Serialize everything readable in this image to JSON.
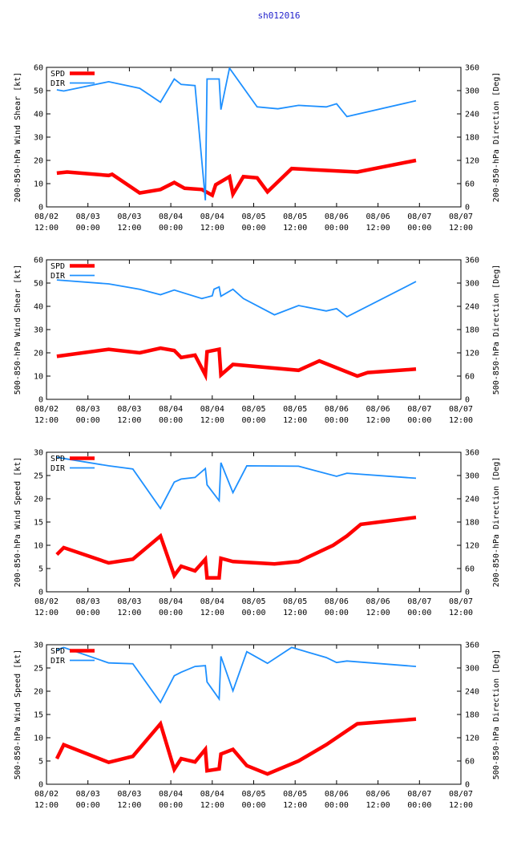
{
  "title": "sh012016",
  "colors": {
    "spd": "#ff0000",
    "dir": "#1e90ff",
    "axis": "#000000",
    "grid": "#a0a0a0",
    "title": "#2222cc"
  },
  "x_ticks": [
    {
      "date": "08/02",
      "time": "12:00"
    },
    {
      "date": "08/03",
      "time": "00:00"
    },
    {
      "date": "08/03",
      "time": "12:00"
    },
    {
      "date": "08/04",
      "time": "00:00"
    },
    {
      "date": "08/04",
      "time": "12:00"
    },
    {
      "date": "08/05",
      "time": "00:00"
    },
    {
      "date": "08/05",
      "time": "12:00"
    },
    {
      "date": "08/06",
      "time": "00:00"
    },
    {
      "date": "08/06",
      "time": "12:00"
    },
    {
      "date": "08/07",
      "time": "00:00"
    },
    {
      "date": "08/07",
      "time": "12:00"
    }
  ],
  "chart_data": [
    {
      "type": "line",
      "ylabel": "200-850-hPa Wind Shear [kt]",
      "y2label": "200-850-hPa Direction [Deg]",
      "ylim": [
        0,
        60
      ],
      "y_ticks": [
        0,
        10,
        20,
        30,
        40,
        50,
        60
      ],
      "y2lim": [
        0,
        360
      ],
      "y2_ticks": [
        0,
        60,
        120,
        180,
        240,
        300,
        360
      ],
      "xlim": [
        0,
        120
      ],
      "legend": [
        {
          "label": "SPD",
          "series": "spd"
        },
        {
          "label": "DIR",
          "series": "dir"
        }
      ],
      "series": [
        {
          "name": "SPD",
          "key": "spd",
          "x": [
            3,
            6,
            18,
            19,
            27,
            33,
            37,
            40,
            45,
            48,
            49,
            53,
            54,
            57,
            61,
            64,
            71,
            77,
            90,
            107
          ],
          "y": [
            14.5,
            15,
            13.5,
            14,
            6,
            7.5,
            10.5,
            8,
            7.5,
            5,
            9.5,
            13,
            5.5,
            13,
            12.5,
            6.5,
            16.5,
            16,
            15,
            20
          ]
        },
        {
          "name": "DIR",
          "key": "dir",
          "x": [
            3,
            5,
            18,
            27,
            33,
            37,
            39,
            43,
            46,
            46.5,
            50,
            50.5,
            53,
            61,
            67,
            73,
            81,
            84,
            87,
            107
          ],
          "y": [
            302,
            299,
            323,
            306,
            270,
            330,
            316,
            313,
            17,
            330,
            330,
            251,
            358,
            258,
            253,
            262,
            258,
            266,
            233,
            274
          ]
        }
      ]
    },
    {
      "type": "line",
      "ylabel": "500-850-hPa Wind Shear [kt]",
      "y2label": "500-850-hPa Direction [Deg]",
      "ylim": [
        0,
        60
      ],
      "y_ticks": [
        0,
        10,
        20,
        30,
        40,
        50,
        60
      ],
      "y2lim": [
        0,
        360
      ],
      "y2_ticks": [
        0,
        60,
        120,
        180,
        240,
        300,
        360
      ],
      "xlim": [
        0,
        120
      ],
      "legend": [
        {
          "label": "SPD",
          "series": "spd"
        },
        {
          "label": "DIR",
          "series": "dir"
        }
      ],
      "series": [
        {
          "name": "SPD",
          "key": "spd",
          "x": [
            3,
            18,
            27,
            33,
            37,
            39,
            43,
            46,
            46.5,
            50,
            50.5,
            54,
            73,
            79,
            90,
            93,
            107
          ],
          "y": [
            18.5,
            21.5,
            20,
            22,
            21,
            18,
            19,
            10.5,
            20.5,
            21.5,
            10.5,
            15,
            12.5,
            16.5,
            10,
            11.5,
            13
          ]
        },
        {
          "name": "DIR",
          "key": "dir",
          "x": [
            3,
            18,
            27,
            33,
            37,
            45,
            48,
            48.5,
            50,
            50.5,
            54,
            57,
            66,
            73,
            81,
            84,
            87,
            107
          ],
          "y": [
            308,
            298,
            284,
            270,
            282,
            260,
            267,
            284,
            290,
            266,
            284,
            260,
            218,
            242,
            228,
            234,
            213,
            304
          ]
        }
      ]
    },
    {
      "type": "line",
      "ylabel": "200-850-hPa Wind Speed [kt]",
      "y2label": "200-850-hPa Direction [Deg]",
      "ylim": [
        0,
        30
      ],
      "y_ticks": [
        0,
        5,
        10,
        15,
        20,
        25,
        30
      ],
      "y2lim": [
        0,
        360
      ],
      "y2_ticks": [
        0,
        60,
        120,
        180,
        240,
        300,
        360
      ],
      "xlim": [
        0,
        120
      ],
      "legend": [
        {
          "label": "SPD",
          "series": "spd"
        },
        {
          "label": "DIR",
          "series": "dir"
        }
      ],
      "series": [
        {
          "name": "SPD",
          "key": "spd",
          "x": [
            3,
            5,
            18,
            25,
            33,
            37,
            39,
            43,
            46,
            46.5,
            50,
            50.5,
            54,
            66,
            73,
            83,
            87,
            91,
            107
          ],
          "y": [
            8,
            9.5,
            6.2,
            7,
            12,
            3.5,
            5.5,
            4.5,
            7,
            3,
            3,
            7.2,
            6.5,
            6,
            6.5,
            10,
            12,
            14.5,
            16
          ]
        },
        {
          "name": "DIR",
          "key": "dir",
          "x": [
            3,
            18,
            25,
            33,
            37,
            39,
            43,
            46,
            46.5,
            50,
            50.5,
            54,
            58,
            73,
            84,
            87,
            107
          ],
          "y": [
            347,
            325,
            317,
            215,
            283,
            291,
            295,
            318,
            276,
            235,
            333,
            256,
            325,
            324,
            298,
            306,
            293
          ]
        }
      ]
    },
    {
      "type": "line",
      "ylabel": "500-850-hPa Wind Speed [kt]",
      "y2label": "500-850-hPa Direction [Deg]",
      "ylim": [
        0,
        30
      ],
      "y_ticks": [
        0,
        5,
        10,
        15,
        20,
        25,
        30
      ],
      "y2lim": [
        0,
        360
      ],
      "y2_ticks": [
        0,
        60,
        120,
        180,
        240,
        300,
        360
      ],
      "xlim": [
        0,
        120
      ],
      "legend": [
        {
          "label": "SPD",
          "series": "spd"
        },
        {
          "label": "DIR",
          "series": "dir"
        }
      ],
      "series": [
        {
          "name": "SPD",
          "key": "spd",
          "x": [
            3,
            5,
            18,
            25,
            33,
            37,
            39,
            43,
            46,
            46.5,
            50,
            50.5,
            54,
            58,
            64,
            73,
            81,
            84,
            87,
            90,
            107
          ],
          "y": [
            5.5,
            8.5,
            4.7,
            6,
            13,
            3.2,
            5.5,
            4.8,
            7.5,
            2.9,
            3.3,
            6.5,
            7.5,
            4,
            2.2,
            5,
            8.5,
            10,
            11.5,
            13,
            14
          ]
        },
        {
          "name": "DIR",
          "key": "dir",
          "x": [
            3,
            5,
            18,
            25,
            33,
            37,
            39,
            43,
            46,
            46.5,
            50,
            50.5,
            54,
            58,
            64,
            71,
            81,
            84,
            87,
            107
          ],
          "y": [
            347,
            353,
            313,
            311,
            211,
            280,
            289,
            304,
            306,
            264,
            220,
            330,
            241,
            342,
            312,
            353,
            327,
            314,
            318,
            304
          ]
        }
      ]
    }
  ]
}
